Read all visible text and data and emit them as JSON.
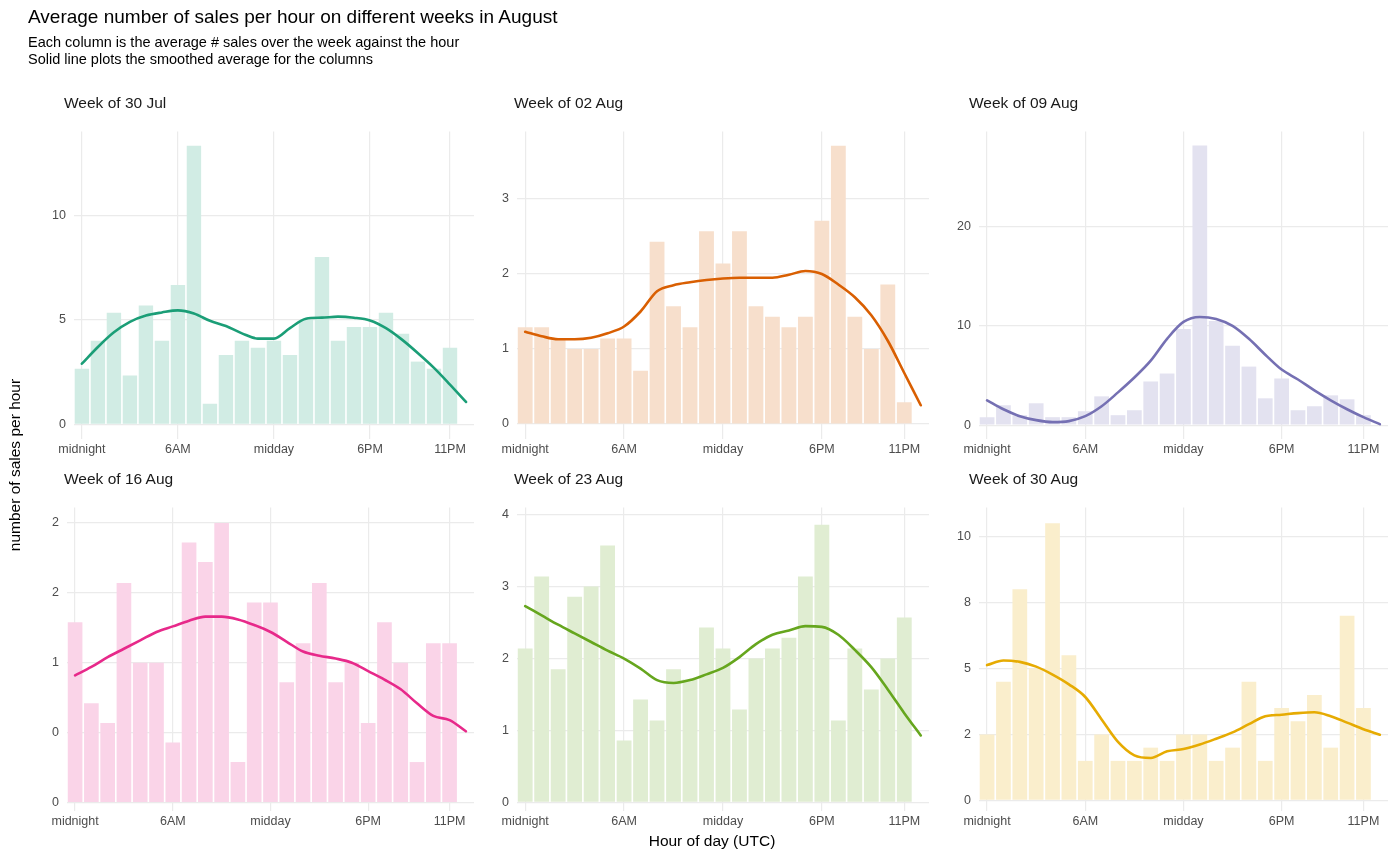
{
  "chart_data": [
    {
      "type": "bar",
      "title": "Week of 30 Jul",
      "annotations": [
        "Average number of sales per hour on different weeks in August",
        "Each column is the average # sales over the week against the hour",
        "Solid line plots the smoothed average for the columns"
      ],
      "categories": [
        "midnight",
        null,
        null,
        null,
        null,
        null,
        "6AM",
        null,
        null,
        null,
        null,
        null,
        "midday",
        null,
        null,
        null,
        null,
        null,
        "6PM",
        null,
        null,
        null,
        null,
        "11PM",
        null
      ],
      "series": [
        {
          "color": "#d1ece4",
          "values": [
            2.66,
            4.0,
            5.34,
            2.34,
            5.68,
            4.0,
            6.66,
            13.32,
            0.98,
            3.32,
            4.0,
            3.66,
            4.0,
            3.32,
            5.0,
            8.0,
            4.0,
            4.66,
            4.66,
            5.34,
            4.33,
            3.0,
            2.66,
            3.66,
            null
          ]
        },
        {
          "type": "line",
          "color": "#1b9e77",
          "values": [
            2.9,
            3.7,
            4.4,
            4.9,
            5.2,
            5.35,
            5.45,
            5.3,
            4.95,
            4.7,
            4.35,
            4.1,
            4.1,
            4.6,
            5.05,
            5.1,
            5.15,
            5.1,
            4.97,
            4.6,
            4.05,
            3.4,
            2.7,
            1.9,
            1.07
          ]
        }
      ],
      "ylim": [
        -0.7,
        14
      ],
      "yticks": [
        0,
        5,
        10
      ],
      "grid": true
    },
    {
      "type": "bar",
      "title": "Week of 02 Aug",
      "categories": [
        "midnight",
        null,
        null,
        null,
        null,
        null,
        "6AM",
        null,
        null,
        null,
        null,
        null,
        "midday",
        null,
        null,
        null,
        null,
        null,
        "6PM",
        null,
        null,
        null,
        null,
        "11PM",
        null
      ],
      "series": [
        {
          "color": "#f7dfcc",
          "values": [
            1.29,
            1.29,
            1.14,
            1.0,
            1.0,
            1.14,
            1.14,
            0.71,
            2.43,
            1.57,
            1.29,
            2.57,
            2.14,
            2.57,
            1.57,
            1.43,
            1.29,
            1.43,
            2.71,
            3.71,
            1.43,
            1.0,
            1.86,
            0.29,
            null
          ]
        },
        {
          "type": "line",
          "color": "#d95f02",
          "values": [
            1.23,
            1.17,
            1.13,
            1.13,
            1.15,
            1.21,
            1.3,
            1.5,
            1.77,
            1.85,
            1.89,
            1.92,
            1.94,
            1.95,
            1.95,
            1.95,
            1.99,
            2.04,
            2.0,
            1.86,
            1.69,
            1.45,
            1.11,
            0.68,
            0.25
          ]
        }
      ],
      "ylim": [
        -0.2,
        3.9
      ],
      "yticks": [
        0,
        1,
        2,
        3
      ],
      "grid": true
    },
    {
      "type": "bar",
      "title": "Week of 09 Aug",
      "categories": [
        "midnight",
        null,
        null,
        null,
        null,
        null,
        "6AM",
        null,
        null,
        null,
        null,
        null,
        "midday",
        null,
        null,
        null,
        null,
        null,
        "6PM",
        null,
        null,
        null,
        null,
        "11PM",
        null
      ],
      "series": [
        {
          "color": "#e3e2f0",
          "values": [
            0.8,
            2.0,
            1.0,
            2.2,
            0.8,
            0.8,
            1.4,
            2.9,
            1.0,
            1.5,
            4.4,
            5.2,
            9.7,
            28.2,
            10.5,
            8.0,
            5.9,
            2.7,
            4.7,
            1.5,
            1.9,
            3.0,
            2.6,
            1.0,
            null
          ]
        },
        {
          "type": "line",
          "color": "#7570b3",
          "values": [
            2.5,
            1.6,
            0.9,
            0.5,
            0.3,
            0.4,
            0.9,
            1.9,
            3.3,
            4.8,
            6.5,
            8.7,
            10.4,
            10.9,
            10.7,
            10.0,
            8.7,
            7.1,
            5.6,
            4.6,
            3.5,
            2.5,
            1.6,
            0.8,
            0.1
          ]
        }
      ],
      "ylim": [
        -1.4,
        29.6
      ],
      "yticks": [
        0,
        10,
        20
      ],
      "grid": true
    },
    {
      "type": "bar",
      "title": "Week of 16 Aug",
      "ylabel": "number of sales per hour",
      "categories": [
        "midnight",
        null,
        null,
        null,
        null,
        null,
        "6AM",
        null,
        null,
        null,
        null,
        null,
        "midday",
        null,
        null,
        null,
        null,
        null,
        "6PM",
        null,
        null,
        null,
        null,
        "11PM",
        null
      ],
      "series": [
        {
          "color": "#fad4e8",
          "values": [
            1.29,
            0.71,
            0.57,
            1.57,
            1.0,
            1.0,
            0.43,
            1.86,
            1.72,
            2.0,
            0.29,
            1.43,
            1.43,
            0.86,
            1.14,
            1.57,
            0.86,
            1.0,
            0.57,
            1.29,
            1.0,
            0.29,
            1.14,
            1.14,
            null
          ]
        },
        {
          "type": "line",
          "color": "#e7298a",
          "values": [
            0.91,
            0.97,
            1.04,
            1.1,
            1.16,
            1.22,
            1.26,
            1.3,
            1.33,
            1.33,
            1.31,
            1.27,
            1.22,
            1.15,
            1.08,
            1.05,
            1.03,
            1.0,
            0.94,
            0.88,
            0.81,
            0.71,
            0.62,
            0.59,
            0.51
          ]
        }
      ],
      "ylim": [
        -0.06,
        2.11
      ],
      "yticks": [
        0,
        {
          "value": 0.5,
          "label": "0"
        },
        1,
        {
          "value": 1.5,
          "label": "2"
        },
        2
      ],
      "grid": true
    },
    {
      "type": "bar",
      "title": "Week of 23 Aug",
      "xlabel": "Hour of day (UTC)",
      "categories": [
        "midnight",
        null,
        null,
        null,
        null,
        null,
        "6AM",
        null,
        null,
        null,
        null,
        null,
        "midday",
        null,
        null,
        null,
        null,
        null,
        "6PM",
        null,
        null,
        null,
        null,
        "11PM",
        null
      ],
      "series": [
        {
          "color": "#e0edd2",
          "values": [
            2.14,
            3.14,
            1.85,
            2.86,
            3.0,
            3.57,
            0.86,
            1.43,
            1.14,
            1.85,
            1.71,
            2.43,
            2.14,
            1.29,
            2.0,
            2.14,
            2.29,
            3.14,
            3.86,
            1.14,
            2.14,
            1.57,
            2.0,
            2.57,
            null
          ]
        },
        {
          "type": "line",
          "color": "#66a61e",
          "values": [
            2.73,
            2.6,
            2.47,
            2.35,
            2.23,
            2.11,
            2.0,
            1.86,
            1.7,
            1.66,
            1.7,
            1.78,
            1.87,
            2.02,
            2.2,
            2.33,
            2.39,
            2.45,
            2.44,
            2.33,
            2.12,
            1.88,
            1.57,
            1.24,
            0.93
          ]
        }
      ],
      "ylim": [
        -0.12,
        4.1
      ],
      "yticks": [
        0,
        1,
        2,
        3,
        4
      ],
      "grid": true
    },
    {
      "type": "bar",
      "title": "Week of 30 Aug",
      "categories": [
        "midnight",
        null,
        null,
        null,
        null,
        null,
        "6AM",
        null,
        null,
        null,
        null,
        null,
        "midday",
        null,
        null,
        null,
        null,
        null,
        "6PM",
        null,
        null,
        null,
        null,
        "11PM",
        null
      ],
      "series": [
        {
          "color": "#faeecc",
          "values": [
            2.5,
            4.5,
            8.0,
            5.0,
            10.5,
            5.5,
            1.5,
            2.5,
            1.5,
            1.5,
            2.0,
            1.5,
            2.5,
            2.5,
            1.5,
            2.0,
            4.5,
            1.5,
            3.5,
            3.0,
            4.0,
            2.0,
            7.0,
            3.5,
            null
          ]
        },
        {
          "type": "line",
          "color": "#e6ab02",
          "values": [
            5.13,
            5.3,
            5.25,
            5.07,
            4.77,
            4.4,
            3.92,
            3.07,
            2.22,
            1.71,
            1.61,
            1.86,
            1.95,
            2.12,
            2.34,
            2.58,
            2.89,
            3.19,
            3.25,
            3.31,
            3.34,
            3.19,
            2.95,
            2.7,
            2.49
          ]
        }
      ],
      "ylim": [
        -0.4,
        11.1
      ],
      "yticks": [
        0,
        {
          "value": 2.5,
          "label": "2"
        },
        5,
        {
          "value": 7.5,
          "label": "8"
        },
        10
      ],
      "grid": true
    }
  ]
}
